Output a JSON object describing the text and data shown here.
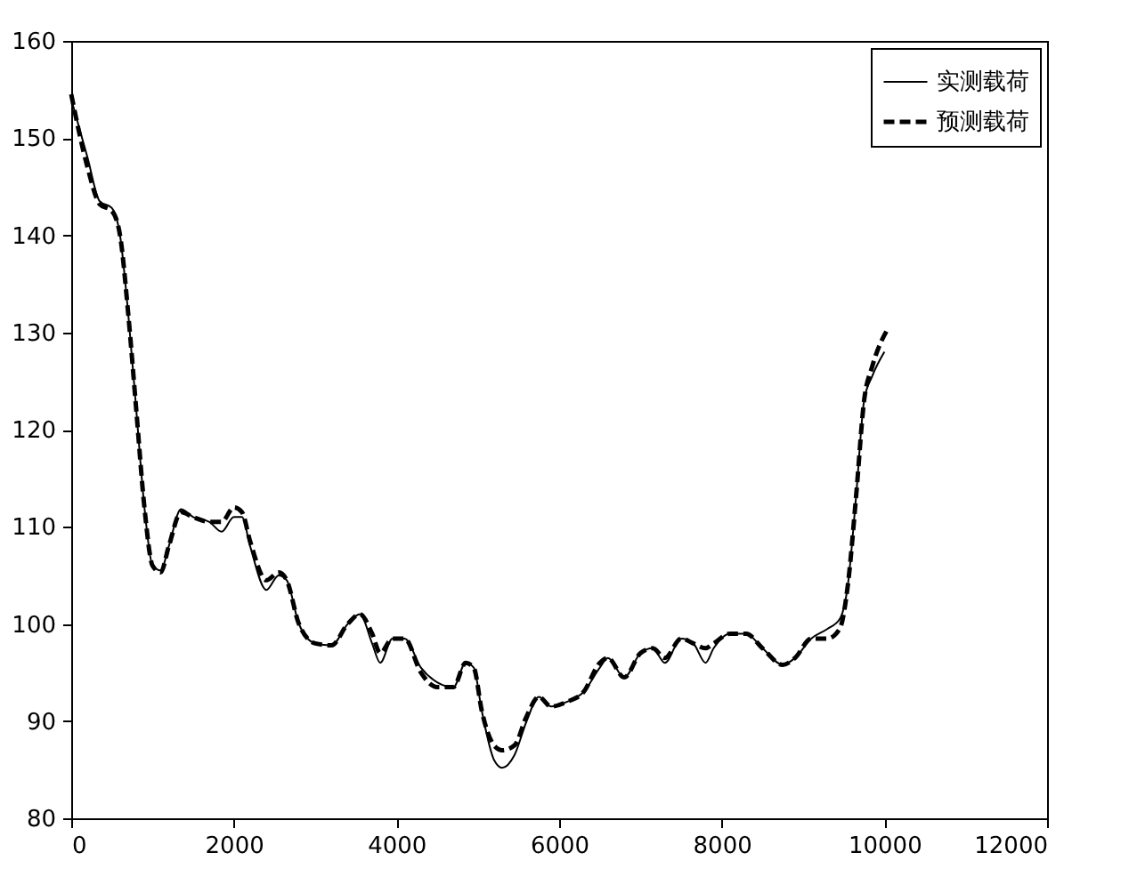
{
  "chart_data": {
    "type": "line",
    "xlim": [
      0,
      12000
    ],
    "ylim": [
      80,
      160
    ],
    "xticks": [
      0,
      2000,
      4000,
      6000,
      8000,
      10000,
      12000
    ],
    "yticks": [
      80,
      90,
      100,
      110,
      120,
      130,
      140,
      150,
      160
    ],
    "grid": false,
    "legend": "top right",
    "marker": "none",
    "series": [
      {
        "name": "实测载荷",
        "color": "#000000",
        "line_style": "solid",
        "x": [
          0,
          200,
          350,
          500,
          600,
          700,
          800,
          900,
          1000,
          1100,
          1200,
          1350,
          1500,
          1700,
          1850,
          2000,
          2100,
          2200,
          2400,
          2550,
          2650,
          2800,
          3000,
          3200,
          3400,
          3550,
          3700,
          3800,
          3950,
          4100,
          4300,
          4500,
          4700,
          4850,
          4950,
          5050,
          5200,
          5300,
          5450,
          5600,
          5750,
          5900,
          6100,
          6300,
          6500,
          6600,
          6800,
          7000,
          7150,
          7300,
          7500,
          7650,
          7800,
          7900,
          8100,
          8300,
          8500,
          8750,
          8900,
          9100,
          9300,
          9450,
          9550,
          9650,
          9750,
          9850,
          10000
        ],
        "values": [
          154,
          148,
          143.5,
          142.8,
          140,
          132,
          122,
          112,
          106,
          105.5,
          108,
          111.8,
          111,
          110.5,
          109.5,
          111,
          111,
          108,
          103.5,
          105,
          104.5,
          100,
          98,
          97.8,
          100,
          101,
          98,
          96,
          98.5,
          98.5,
          95.5,
          94,
          93.5,
          96,
          95.5,
          91,
          86,
          85.2,
          86.5,
          90,
          92.5,
          91.5,
          92,
          93,
          95.5,
          96.5,
          94.5,
          97,
          97.5,
          96,
          98.5,
          98,
          96,
          97.5,
          99,
          99,
          97.5,
          95.8,
          96.5,
          98.5,
          99.5,
          100.5,
          104,
          113,
          123,
          125.5,
          128
        ]
      },
      {
        "name": "预测载荷",
        "color": "#000000",
        "line_style": "dashed",
        "x": [
          0,
          200,
          350,
          500,
          600,
          700,
          800,
          900,
          1000,
          1100,
          1200,
          1350,
          1500,
          1700,
          1850,
          2000,
          2100,
          2200,
          2400,
          2550,
          2650,
          2800,
          3000,
          3200,
          3400,
          3550,
          3700,
          3800,
          3950,
          4100,
          4300,
          4500,
          4700,
          4850,
          4950,
          5050,
          5200,
          5300,
          5450,
          5600,
          5750,
          5900,
          6100,
          6300,
          6500,
          6600,
          6800,
          7000,
          7150,
          7300,
          7500,
          7650,
          7800,
          7900,
          8100,
          8300,
          8500,
          8750,
          8900,
          9100,
          9300,
          9450,
          9550,
          9650,
          9750,
          9850,
          10050
        ],
        "values": [
          154.5,
          147,
          143.2,
          142.5,
          140,
          132,
          122,
          112,
          106,
          105.3,
          108,
          111.5,
          111,
          110.5,
          110.5,
          112,
          111.5,
          108.5,
          104.5,
          105.3,
          104.5,
          100,
          98,
          97.8,
          100,
          101,
          99,
          97,
          98.5,
          98.5,
          95,
          93.5,
          93.5,
          96,
          95.5,
          91,
          87.5,
          87,
          87.5,
          90.5,
          92.5,
          91.5,
          92,
          93,
          96,
          96.5,
          94.5,
          97,
          97.5,
          96.5,
          98.5,
          98,
          97.5,
          98,
          99,
          99,
          97.5,
          95.8,
          96.5,
          98.5,
          98.5,
          99.5,
          104,
          113,
          123,
          126.5,
          130.5
        ]
      }
    ]
  }
}
